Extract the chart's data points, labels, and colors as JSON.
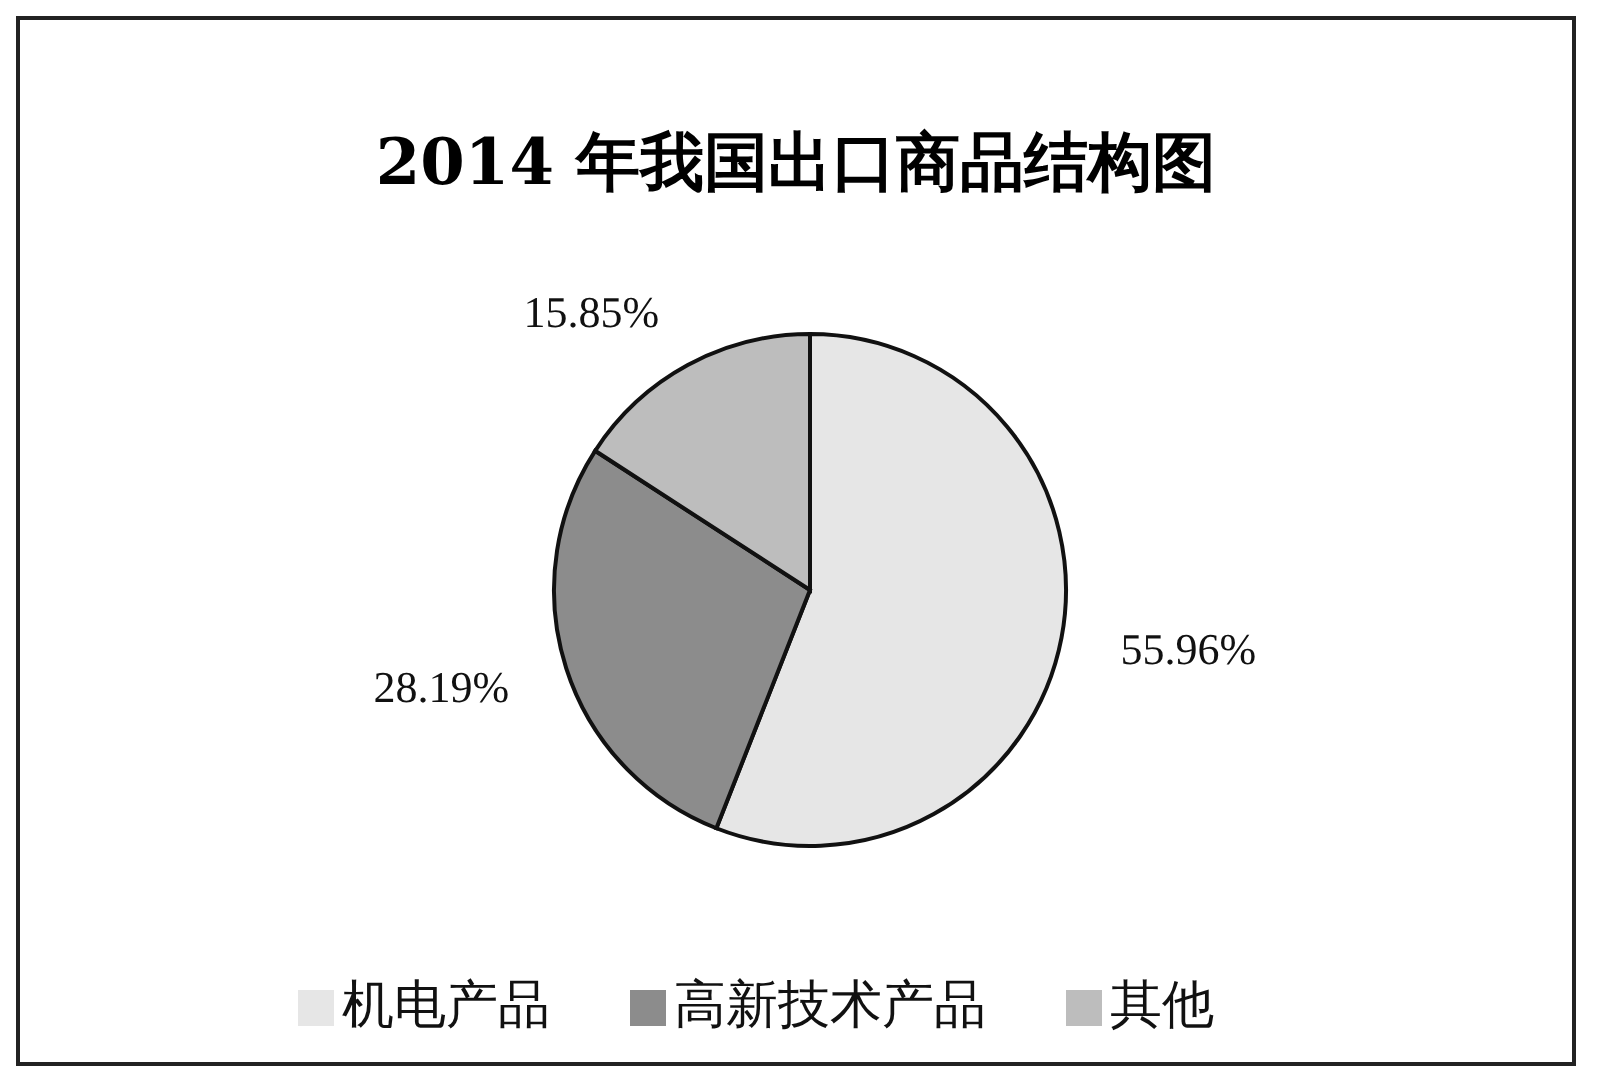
{
  "chart_data": {
    "type": "pie",
    "title": "2014 年我国出口商品结构图",
    "categories": [
      "机电产品",
      "高新技术产品",
      "其他"
    ],
    "values": [
      55.96,
      28.19,
      15.85
    ],
    "colors": [
      "#e6e6e6",
      "#8c8c8c",
      "#bdbdbd"
    ],
    "value_labels": [
      "55.96%",
      "28.19%",
      "15.85%"
    ],
    "legend": "bottom"
  }
}
